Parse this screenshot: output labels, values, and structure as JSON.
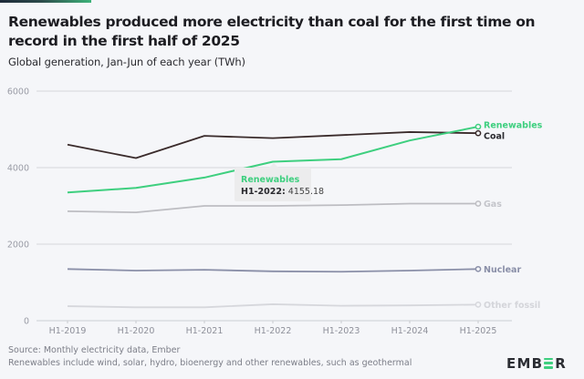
{
  "header": {
    "title": "Renewables produced more electricity than coal for the first time on record in the first half of 2025",
    "subtitle": "Global generation, Jan-Jun of each year (TWh)"
  },
  "colors": {
    "accent": "#3ecf7f",
    "renewables": "#3ecf7f",
    "coal": "#3a2b2b",
    "gas": "#bdbdc2",
    "nuclear": "#8a8fa8",
    "other_fossil": "#d6d7dc",
    "background": "#f5f6f9"
  },
  "chart_data": {
    "type": "line",
    "title": "Renewables produced more electricity than coal for the first time on record in the first half of 2025",
    "subtitle": "Global generation, Jan-Jun of each year (TWh)",
    "xlabel": "",
    "ylabel": "",
    "x": [
      "H1-2019",
      "H1-2020",
      "H1-2021",
      "H1-2022",
      "H1-2023",
      "H1-2024",
      "H1-2025"
    ],
    "ylim": [
      0,
      6000
    ],
    "yticks": [
      0,
      2000,
      4000,
      6000
    ],
    "grid": true,
    "legend": "inline-right-end",
    "series": [
      {
        "key": "renewables",
        "name": "Renewables",
        "values": [
          3350,
          3470,
          3740,
          4155.18,
          4220,
          4710,
          5070
        ]
      },
      {
        "key": "coal",
        "name": "Coal",
        "values": [
          4600,
          4250,
          4830,
          4770,
          4850,
          4930,
          4900
        ]
      },
      {
        "key": "gas",
        "name": "Gas",
        "values": [
          2860,
          2830,
          3000,
          3000,
          3020,
          3060,
          3060
        ]
      },
      {
        "key": "nuclear",
        "name": "Nuclear",
        "values": [
          1350,
          1310,
          1330,
          1290,
          1280,
          1310,
          1350
        ]
      },
      {
        "key": "other_fossil",
        "name": "Other fossil",
        "values": [
          380,
          350,
          350,
          430,
          390,
          400,
          420
        ]
      }
    ],
    "tooltip": {
      "series": "Renewables",
      "x": "H1-2022",
      "value": "4155.18"
    }
  },
  "tooltip": {
    "series": "Renewables",
    "key": "H1-2022:",
    "value": " 4155.18"
  },
  "footer": {
    "source": "Source: Monthly electricity data, Ember",
    "note": "Renewables include wind, solar, hydro, bioenergy and other renewables, such as geothermal"
  },
  "logo": {
    "before": "EMB",
    "after": "R",
    "name": "EMBER"
  }
}
